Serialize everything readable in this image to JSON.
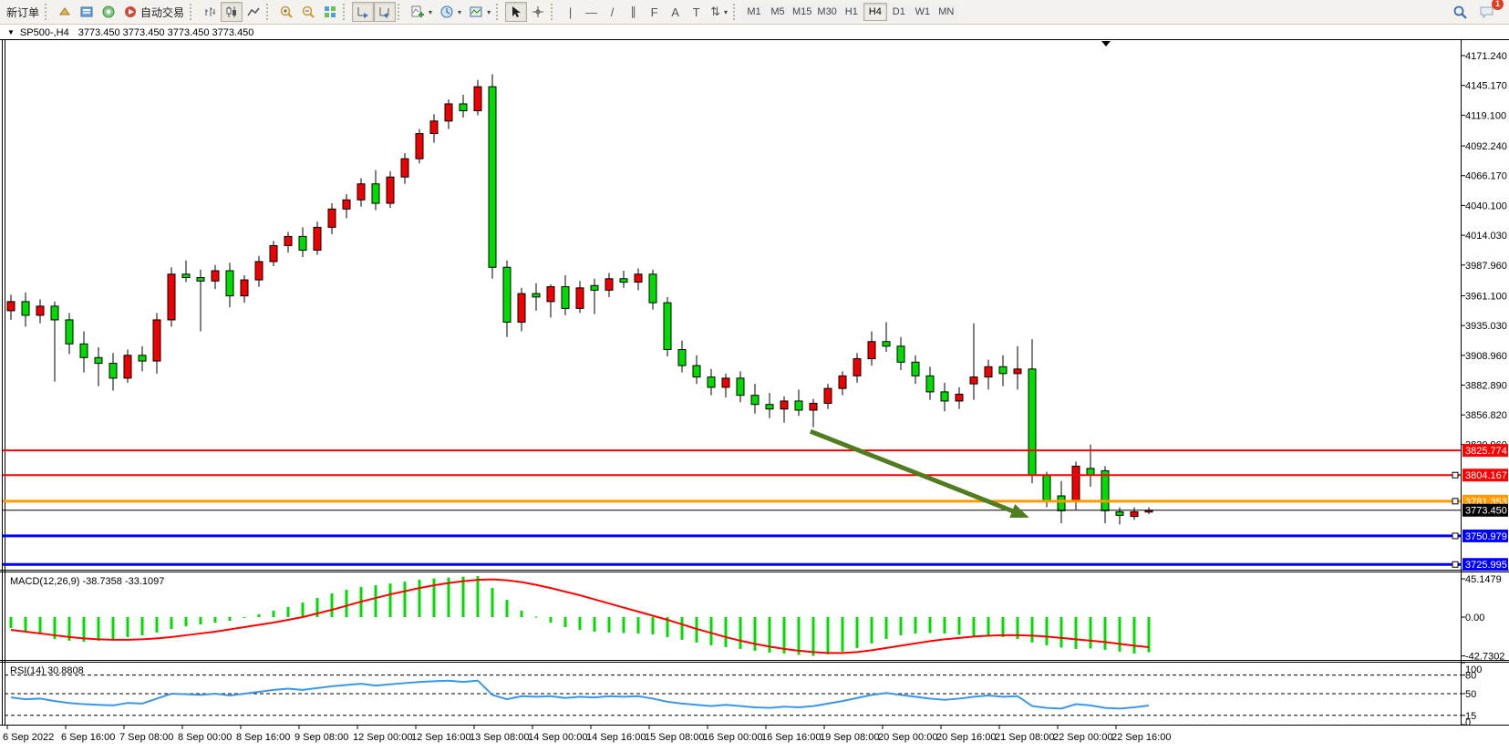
{
  "toolbar": {
    "new_order": "新订单",
    "autotrade": "自动交易",
    "timeframes": [
      "M1",
      "M5",
      "M15",
      "M30",
      "H1",
      "H4",
      "D1",
      "W1",
      "MN"
    ],
    "active_timeframe": "H4",
    "notification_count": "1"
  },
  "icons": {
    "dropdown": "▾",
    "menu_triangle": "▼",
    "vertical_line": "|",
    "horizontal_line": "—",
    "trendline": "/",
    "channel": "∥",
    "fibonacci": "F",
    "text": "A",
    "text_label": "T",
    "arrows": "⇅"
  },
  "window": {
    "symbol_period": "SP500-,H4",
    "quotes": "3773.450 3773.450 3773.450 3773.450"
  },
  "price_axis": {
    "ticks": [
      "4171.240",
      "4145.170",
      "4119.100",
      "4092.240",
      "4066.170",
      "4040.100",
      "4014.030",
      "3987.960",
      "3961.100",
      "3935.030",
      "3908.960",
      "3882.890",
      "3856.820",
      "3830.960"
    ],
    "tick_values": [
      4171.24,
      4145.17,
      4119.1,
      4092.24,
      4066.17,
      4040.1,
      4014.03,
      3987.96,
      3961.1,
      3935.03,
      3908.96,
      3882.89,
      3856.82,
      3830.96
    ]
  },
  "hlines": [
    {
      "price": 3825.774,
      "label": "3825.774",
      "color": "#ff0000",
      "width": 2,
      "handle": false
    },
    {
      "price": 3804.167,
      "label": "3804.167",
      "color": "#ff0000",
      "width": 2,
      "handle": true
    },
    {
      "price": 3781.353,
      "label": "3781.353",
      "color": "#ff9b00",
      "width": 3,
      "handle": true
    },
    {
      "price": 3750.979,
      "label": "3750.979",
      "color": "#0000ff",
      "width": 3,
      "handle": true
    },
    {
      "price": 3725.995,
      "label": "3725.995",
      "color": "#0000ff",
      "width": 3,
      "handle": true
    }
  ],
  "current_price": {
    "price": 3773.45,
    "label": "3773.450",
    "color": "#000000"
  },
  "time_axis": [
    "6 Sep 2022",
    "6 Sep 16:00",
    "7 Sep 08:00",
    "8 Sep 00:00",
    "8 Sep 16:00",
    "9 Sep 08:00",
    "12 Sep 00:00",
    "12 Sep 16:00",
    "13 Sep 08:00",
    "14 Sep 00:00",
    "14 Sep 16:00",
    "15 Sep 08:00",
    "16 Sep 00:00",
    "16 Sep 16:00",
    "19 Sep 08:00",
    "20 Sep 00:00",
    "20 Sep 16:00",
    "21 Sep 08:00",
    "22 Sep 00:00",
    "22 Sep 16:00"
  ],
  "chart_data": {
    "type": "candlestick",
    "symbol": "SP500-",
    "period": "H4",
    "note": "red body = up bar, green body = down bar (CN color convention)",
    "colors": {
      "up": "#f00000",
      "down": "#00dc00",
      "wick": "#000000"
    },
    "candles": [
      [
        3948,
        3962,
        3940,
        3956
      ],
      [
        3956,
        3964,
        3934,
        3944
      ],
      [
        3944,
        3958,
        3937,
        3952
      ],
      [
        3952,
        3956,
        3886,
        3940
      ],
      [
        3940,
        3946,
        3910,
        3919
      ],
      [
        3919,
        3930,
        3894,
        3907
      ],
      [
        3907,
        3916,
        3882,
        3902
      ],
      [
        3902,
        3911,
        3878,
        3889
      ],
      [
        3889,
        3914,
        3885,
        3909
      ],
      [
        3909,
        3917,
        3895,
        3904
      ],
      [
        3904,
        3946,
        3893,
        3940
      ],
      [
        3940,
        3986,
        3934,
        3980
      ],
      [
        3980,
        3992,
        3973,
        3977
      ],
      [
        3977,
        3984,
        3930,
        3974
      ],
      [
        3974,
        3988,
        3967,
        3983
      ],
      [
        3983,
        3990,
        3951,
        3961
      ],
      [
        3961,
        3979,
        3955,
        3975
      ],
      [
        3975,
        3996,
        3969,
        3991
      ],
      [
        3991,
        4009,
        3987,
        4005
      ],
      [
        4005,
        4017,
        3999,
        4013
      ],
      [
        4013,
        4021,
        3995,
        4001
      ],
      [
        4001,
        4026,
        3997,
        4021
      ],
      [
        4021,
        4042,
        4015,
        4037
      ],
      [
        4037,
        4050,
        4029,
        4045
      ],
      [
        4045,
        4064,
        4039,
        4059
      ],
      [
        4059,
        4071,
        4036,
        4042
      ],
      [
        4042,
        4070,
        4038,
        4065
      ],
      [
        4065,
        4086,
        4059,
        4081
      ],
      [
        4081,
        4107,
        4077,
        4103
      ],
      [
        4103,
        4120,
        4095,
        4114
      ],
      [
        4114,
        4133,
        4107,
        4129
      ],
      [
        4129,
        4137,
        4117,
        4123
      ],
      [
        4123,
        4150,
        4119,
        4144
      ],
      [
        4144,
        4155,
        3976,
        3986
      ],
      [
        3986,
        3992,
        3925,
        3938
      ],
      [
        3938,
        3968,
        3930,
        3963
      ],
      [
        3963,
        3972,
        3948,
        3960
      ],
      [
        3956,
        3971,
        3942,
        3969
      ],
      [
        3969,
        3979,
        3944,
        3950
      ],
      [
        3950,
        3974,
        3946,
        3968
      ],
      [
        3970,
        3976,
        3945,
        3966
      ],
      [
        3966,
        3981,
        3960,
        3976
      ],
      [
        3976,
        3983,
        3968,
        3973
      ],
      [
        3973,
        3985,
        3966,
        3980
      ],
      [
        3980,
        3984,
        3949,
        3955
      ],
      [
        3955,
        3960,
        3908,
        3914
      ],
      [
        3914,
        3922,
        3894,
        3900
      ],
      [
        3900,
        3909,
        3884,
        3890
      ],
      [
        3890,
        3897,
        3874,
        3881
      ],
      [
        3881,
        3893,
        3872,
        3889
      ],
      [
        3889,
        3895,
        3868,
        3874
      ],
      [
        3874,
        3884,
        3858,
        3866
      ],
      [
        3866,
        3876,
        3854,
        3862
      ],
      [
        3862,
        3873,
        3850,
        3869
      ],
      [
        3869,
        3879,
        3856,
        3861
      ],
      [
        3861,
        3871,
        3846,
        3867
      ],
      [
        3867,
        3884,
        3862,
        3880
      ],
      [
        3880,
        3895,
        3874,
        3891
      ],
      [
        3891,
        3911,
        3885,
        3906
      ],
      [
        3906,
        3930,
        3900,
        3921
      ],
      [
        3921,
        3938,
        3912,
        3917
      ],
      [
        3917,
        3925,
        3896,
        3903
      ],
      [
        3903,
        3909,
        3884,
        3891
      ],
      [
        3891,
        3899,
        3870,
        3877
      ],
      [
        3877,
        3885,
        3860,
        3869
      ],
      [
        3869,
        3881,
        3862,
        3875
      ],
      [
        3884,
        3937,
        3870,
        3890
      ],
      [
        3890,
        3905,
        3879,
        3899
      ],
      [
        3899,
        3909,
        3882,
        3893
      ],
      [
        3893,
        3917,
        3879,
        3897
      ],
      [
        3897,
        3923,
        3797,
        3804
      ],
      [
        3804,
        3807,
        3776,
        3781
      ],
      [
        3786,
        3799,
        3762,
        3773
      ],
      [
        3781,
        3816,
        3774,
        3812
      ],
      [
        3810,
        3831,
        3794,
        3804
      ],
      [
        3808,
        3812,
        3762,
        3773
      ],
      [
        3772,
        3776,
        3761,
        3769
      ],
      [
        3768,
        3776,
        3765,
        3772
      ],
      [
        3772,
        3776,
        3770,
        3773.45
      ]
    ]
  },
  "macd": {
    "label": "MACD(12,26,9) -38.7358 -33.1097",
    "axis_labels": [
      "45.1479",
      "0.00",
      "-42.7302"
    ],
    "axis_values": [
      45.1479,
      0,
      -42.7302
    ],
    "hist_color": "#00dc00",
    "signal_color": "#ff0000",
    "hist": [
      -12,
      -16,
      -19,
      -24,
      -26,
      -27,
      -26,
      -25,
      -22,
      -20,
      -17,
      -13,
      -10,
      -8,
      -6,
      -4,
      -1,
      3,
      7,
      11,
      16,
      21,
      26,
      30,
      33,
      35,
      37,
      39,
      41,
      42.5,
      43.5,
      44.5,
      45.1,
      32,
      19,
      7,
      0.5,
      -6,
      -11,
      -14,
      -16,
      -17,
      -17.5,
      -18,
      -19,
      -22,
      -25,
      -28,
      -31,
      -33,
      -35,
      -37,
      -39,
      -40,
      -41.5,
      -42.7,
      -41,
      -38,
      -34,
      -29,
      -24,
      -20,
      -18,
      -17.5,
      -18,
      -19.5,
      -21,
      -21.5,
      -22,
      -24,
      -28,
      -31,
      -33.5,
      -35,
      -34.5,
      -36,
      -38,
      -40,
      -38.7
    ],
    "signal": [
      -14,
      -16,
      -18,
      -20,
      -22,
      -23.5,
      -24.5,
      -25,
      -25,
      -24.5,
      -23.5,
      -22,
      -20,
      -18,
      -16,
      -13.5,
      -11,
      -8.5,
      -6,
      -3,
      0,
      4,
      8,
      12.5,
      17,
      21,
      25,
      28.5,
      32,
      35,
      37.5,
      39.5,
      41,
      41.5,
      40.5,
      38.5,
      35.5,
      32,
      28,
      24,
      19.5,
      15,
      10.5,
      6,
      1.5,
      -3,
      -8,
      -13,
      -17.5,
      -22,
      -26,
      -29.5,
      -32.5,
      -35,
      -37,
      -38.5,
      -39.5,
      -39.5,
      -38.5,
      -36.5,
      -34,
      -31.5,
      -29,
      -26.5,
      -24.5,
      -23,
      -21.5,
      -20.5,
      -20,
      -20,
      -20.5,
      -21.5,
      -23,
      -24.5,
      -26,
      -27.5,
      -29.5,
      -31.5,
      -33.1
    ]
  },
  "rsi": {
    "label": "RSI(14) 30.8808",
    "axis_labels": [
      "100",
      "80",
      "50",
      "15",
      "0"
    ],
    "axis_values": [
      100,
      80,
      50,
      15,
      0
    ],
    "level_lines": [
      80,
      50,
      15
    ],
    "line_color": "#3c96e8",
    "values": [
      44,
      41,
      42,
      38,
      35,
      33,
      32,
      31,
      35,
      34,
      42,
      50,
      49,
      48,
      50,
      47,
      50,
      53,
      56,
      58,
      56,
      59,
      62,
      64,
      66,
      63,
      65,
      67,
      69,
      70,
      71,
      69,
      71,
      48,
      41,
      46,
      45,
      46,
      43,
      45,
      44,
      46,
      45,
      46,
      42,
      37,
      34,
      32,
      30,
      32,
      30,
      28,
      27,
      29,
      28,
      30,
      34,
      38,
      43,
      48,
      51,
      48,
      45,
      42,
      40,
      42,
      45,
      47,
      45,
      46,
      30,
      27,
      26,
      33,
      31,
      27,
      26,
      28,
      30.88
    ]
  },
  "annotation_arrow": {
    "from_bar": 54.8,
    "from_price": 3842.5,
    "to_bar": 69.8,
    "to_price": 3767,
    "color": "#4f7d1f",
    "width": 5
  }
}
